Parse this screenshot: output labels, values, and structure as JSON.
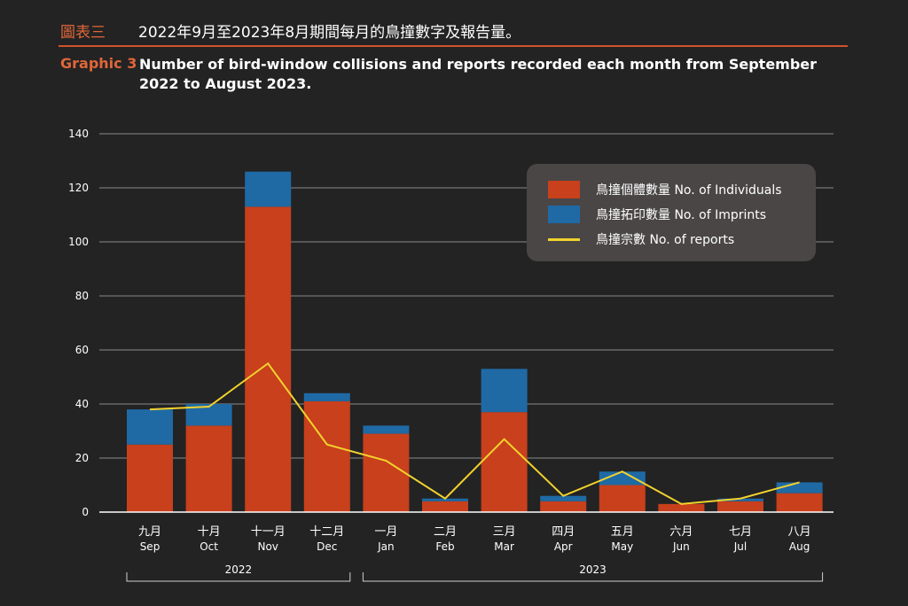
{
  "header": {
    "zh_label": "圖表三",
    "zh_title": "2022年9月至2023年8月期間每月的鳥撞數字及報告量。",
    "en_label": "Graphic 3",
    "en_title": "Number of bird-window collisions and reports recorded each month from September 2022 to August 2023."
  },
  "chart_data": {
    "type": "bar",
    "stacked": true,
    "categories_zh": [
      "九月",
      "十月",
      "十一月",
      "十二月",
      "一月",
      "二月",
      "三月",
      "四月",
      "五月",
      "六月",
      "七月",
      "八月"
    ],
    "categories": [
      "Sep",
      "Oct",
      "Nov",
      "Dec",
      "Jan",
      "Feb",
      "Mar",
      "Apr",
      "May",
      "Jun",
      "Jul",
      "Aug"
    ],
    "year_groups": [
      {
        "label": "2022",
        "from": 0,
        "to": 3
      },
      {
        "label": "2023",
        "from": 4,
        "to": 11
      }
    ],
    "series": [
      {
        "name": "鳥撞個體數量 No. of Individuals",
        "kind": "bar",
        "color": "#c8401c",
        "values": [
          25,
          32,
          113,
          41,
          29,
          4,
          37,
          4,
          10,
          3,
          4,
          7
        ]
      },
      {
        "name": "鳥撞拓印數量 No. of Imprints",
        "kind": "bar",
        "color": "#1f6aa5",
        "values": [
          13,
          8,
          13,
          3,
          3,
          1,
          16,
          2,
          5,
          0,
          1,
          4
        ]
      },
      {
        "name": "鳥撞宗數 No. of reports",
        "kind": "line",
        "color": "#f2d22e",
        "values": [
          38,
          39,
          55,
          25,
          19,
          5,
          27,
          6,
          15,
          3,
          5,
          11
        ]
      }
    ],
    "ylim": [
      0,
      140
    ],
    "yticks": [
      0,
      20,
      40,
      60,
      80,
      100,
      120,
      140
    ],
    "grid": true,
    "legend_position": "top-right"
  }
}
